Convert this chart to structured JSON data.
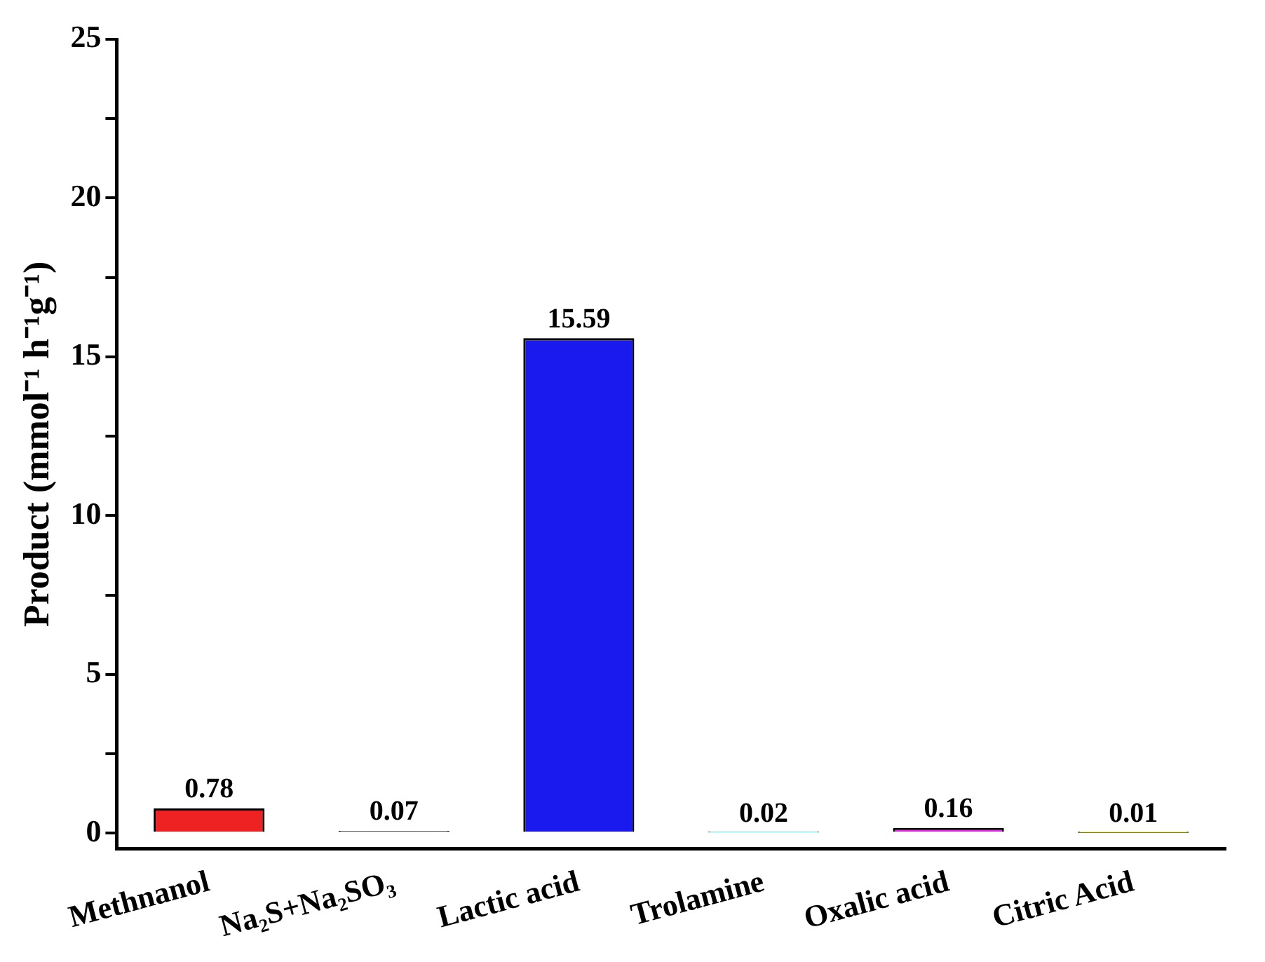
{
  "chart_data": {
    "type": "bar",
    "ylabel": "Product (mmol⁻¹ h⁻¹g⁻¹)",
    "categories": [
      "Methnanol",
      "Na₂S+Na₂SO₃",
      "Lactic acid",
      "Trolamine",
      "Oxalic acid",
      "Citric Acid"
    ],
    "values": [
      0.78,
      0.07,
      15.59,
      0.02,
      0.16,
      0.01
    ],
    "colors": [
      "#ee2222",
      "#33ee33",
      "#1a1aee",
      "#33eeee",
      "#ee22ee",
      "#eeee22"
    ],
    "ylim": [
      -0.5,
      25
    ],
    "yticks": [
      0,
      {
        "value": 2.5,
        "label": null
      },
      5,
      {
        "value": 7.5,
        "label": null
      },
      10,
      {
        "value": 12.5,
        "label": null
      },
      15,
      {
        "value": 17.5,
        "label": null
      },
      20,
      {
        "value": 22.5,
        "label": null
      },
      25
    ],
    "data_labels": true,
    "grid": false,
    "legend": false
  }
}
